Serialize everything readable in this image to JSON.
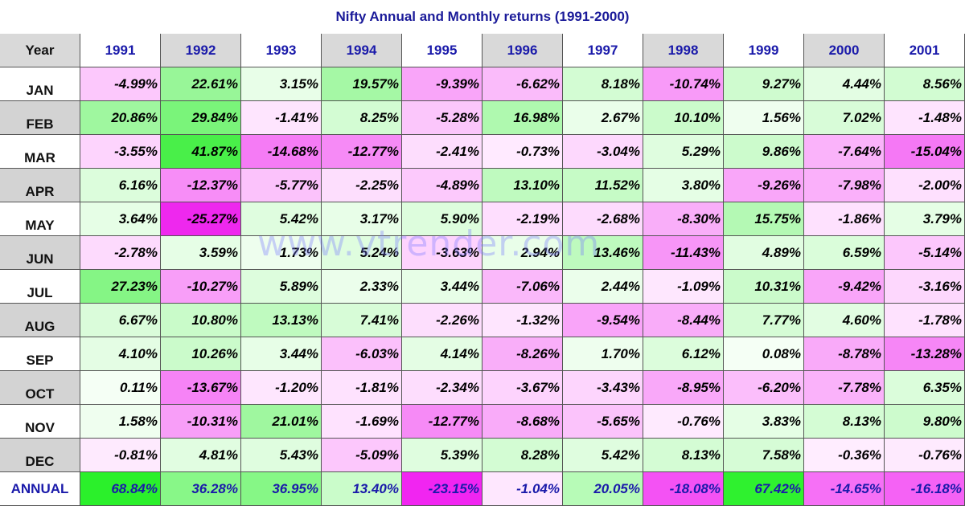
{
  "title": "Nifty Annual and Monthly returns (1991-2000)",
  "watermark": "www.vtrender.com",
  "chart_data": {
    "type": "table",
    "row_header": "Year",
    "columns": [
      "1991",
      "1992",
      "1993",
      "1994",
      "1995",
      "1996",
      "1997",
      "1998",
      "1999",
      "2000",
      "2001"
    ],
    "rows": [
      {
        "label": "JAN",
        "values": [
          "-4.99%",
          "22.61%",
          "3.15%",
          "19.57%",
          "-9.39%",
          "-6.62%",
          "8.18%",
          "-10.74%",
          "9.27%",
          "4.44%",
          "8.56%"
        ]
      },
      {
        "label": "FEB",
        "values": [
          "20.86%",
          "29.84%",
          "-1.41%",
          "8.25%",
          "-5.28%",
          "16.98%",
          "2.67%",
          "10.10%",
          "1.56%",
          "7.02%",
          "-1.48%"
        ]
      },
      {
        "label": "MAR",
        "values": [
          "-3.55%",
          "41.87%",
          "-14.68%",
          "-12.77%",
          "-2.41%",
          "-0.73%",
          "-3.04%",
          "5.29%",
          "9.86%",
          "-7.64%",
          "-15.04%"
        ]
      },
      {
        "label": "APR",
        "values": [
          "6.16%",
          "-12.37%",
          "-5.77%",
          "-2.25%",
          "-4.89%",
          "13.10%",
          "11.52%",
          "3.80%",
          "-9.26%",
          "-7.98%",
          "-2.00%"
        ]
      },
      {
        "label": "MAY",
        "values": [
          "3.64%",
          "-25.27%",
          "5.42%",
          "3.17%",
          "5.90%",
          "-2.19%",
          "-2.68%",
          "-8.30%",
          "15.75%",
          "-1.86%",
          "3.79%"
        ]
      },
      {
        "label": "JUN",
        "values": [
          "-2.78%",
          "3.59%",
          "1.73%",
          "5.24%",
          "-3.63%",
          "2.94%",
          "13.46%",
          "-11.43%",
          "4.89%",
          "6.59%",
          "-5.14%"
        ]
      },
      {
        "label": "JUL",
        "values": [
          "27.23%",
          "-10.27%",
          "5.89%",
          "2.33%",
          "3.44%",
          "-7.06%",
          "2.44%",
          "-1.09%",
          "10.31%",
          "-9.42%",
          "-3.16%"
        ]
      },
      {
        "label": "AUG",
        "values": [
          "6.67%",
          "10.80%",
          "13.13%",
          "7.41%",
          "-2.26%",
          "-1.32%",
          "-9.54%",
          "-8.44%",
          "7.77%",
          "4.60%",
          "-1.78%"
        ]
      },
      {
        "label": "SEP",
        "values": [
          "4.10%",
          "10.26%",
          "3.44%",
          "-6.03%",
          "4.14%",
          "-8.26%",
          "1.70%",
          "6.12%",
          "0.08%",
          "-8.78%",
          "-13.28%"
        ]
      },
      {
        "label": "OCT",
        "values": [
          "0.11%",
          "-13.67%",
          "-1.20%",
          "-1.81%",
          "-2.34%",
          "-3.67%",
          "-3.43%",
          "-8.95%",
          "-6.20%",
          "-7.78%",
          "6.35%"
        ]
      },
      {
        "label": "NOV",
        "values": [
          "1.58%",
          "-10.31%",
          "21.01%",
          "-1.69%",
          "-12.77%",
          "-8.68%",
          "-5.65%",
          "-0.76%",
          "3.83%",
          "8.13%",
          "9.80%"
        ]
      },
      {
        "label": "DEC",
        "values": [
          "-0.81%",
          "4.81%",
          "5.43%",
          "-5.09%",
          "5.39%",
          "8.28%",
          "5.42%",
          "8.13%",
          "7.58%",
          "-0.36%",
          "-0.76%"
        ]
      }
    ],
    "annual": {
      "label": "ANNUAL",
      "values": [
        "68.84%",
        "36.28%",
        "36.95%",
        "13.40%",
        "-23.15%",
        "-1.04%",
        "20.05%",
        "-18.08%",
        "67.42%",
        "-14.65%",
        "-16.18%"
      ]
    },
    "colors": {
      "positive": "#00e000",
      "negative": "#ff00ff",
      "neutral": "#ffffff",
      "header_text": "#1a1aaa"
    }
  }
}
